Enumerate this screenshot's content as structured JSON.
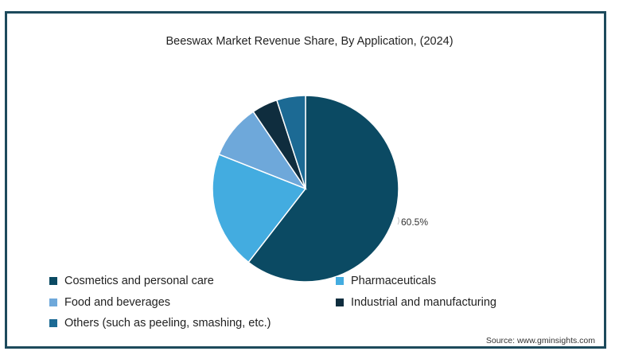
{
  "chart_data": {
    "type": "pie",
    "title": "Beeswax Market Revenue Share, By Application, (2024)",
    "slices": [
      {
        "label": "Cosmetics and personal care",
        "value": 60.5,
        "color": "#0b4a63",
        "data_label": "60.5%"
      },
      {
        "label": "Pharmaceuticals",
        "value": 20.5,
        "color": "#43ace0",
        "data_label": ""
      },
      {
        "label": "Food and beverages",
        "value": 9.5,
        "color": "#6ea8da",
        "data_label": ""
      },
      {
        "label": "Industrial and manufacturing",
        "value": 4.5,
        "color": "#0f2d3e",
        "data_label": ""
      },
      {
        "label": "Others (such as peeling, smashing, etc.)",
        "value": 5.0,
        "color": "#1c6a94",
        "data_label": ""
      }
    ],
    "legend_position": "bottom-left"
  },
  "source": "Source: www.gminsights.com"
}
